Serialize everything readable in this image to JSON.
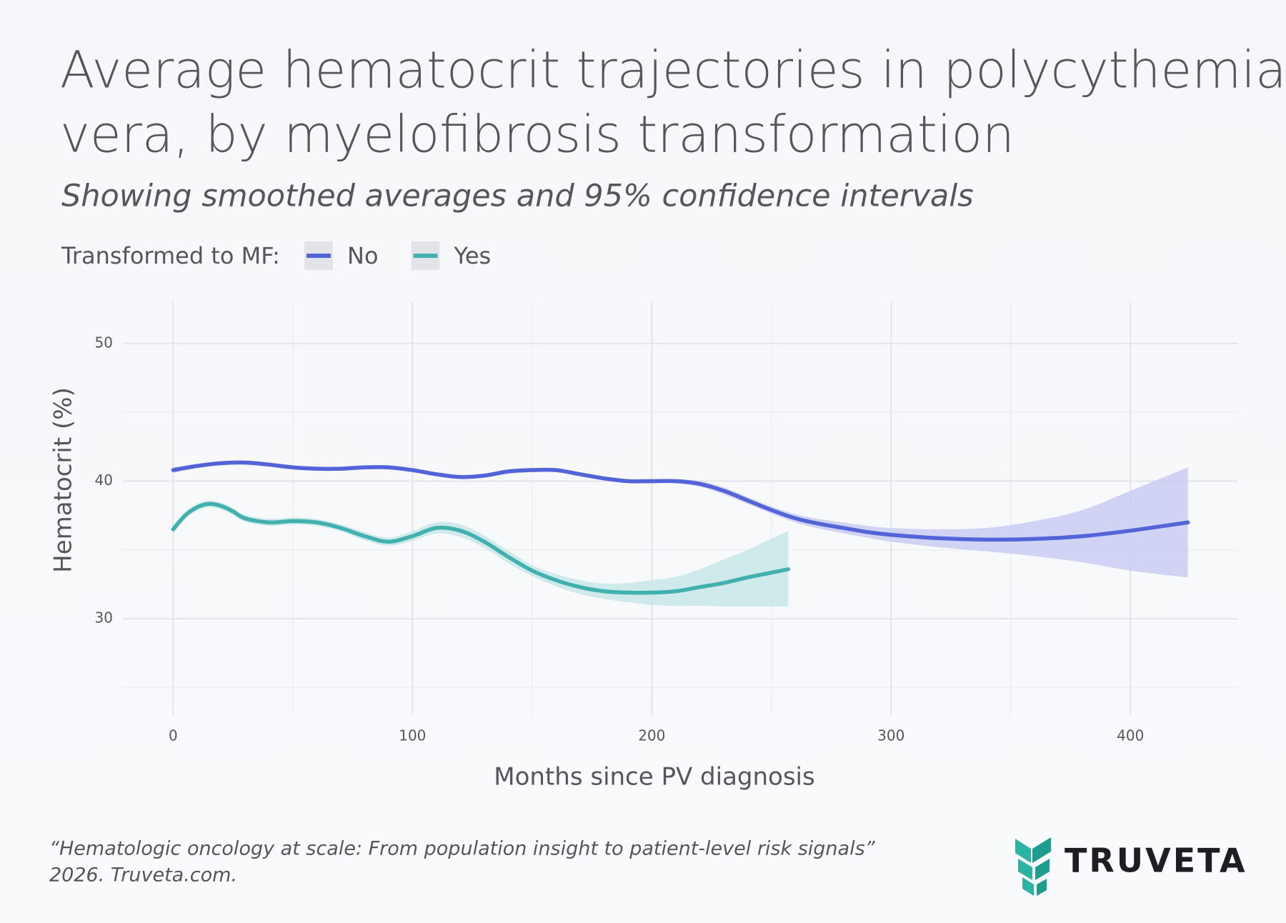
{
  "chart_data": {
    "type": "line",
    "title": [
      "Average hematocrit trajectories in polycythemia",
      "vera, by myelofibrosis transformation"
    ],
    "subtitle": "Showing smoothed averages and 95% confidence intervals",
    "legend_title": "Transformed to MF:",
    "x_label": "Months since PV diagnosis",
    "y_label": "Hematocrit (%)",
    "xlim": [
      -21,
      445
    ],
    "ylim": [
      23,
      53
    ],
    "xticks": [
      0,
      100,
      200,
      300,
      400
    ],
    "yticks": [
      30,
      40,
      50
    ],
    "x_minor_grid": [
      50,
      150,
      250,
      350
    ],
    "y_minor_grid": [
      25,
      35,
      45
    ],
    "grid": true,
    "series": [
      {
        "name": "No",
        "color": "#5264d8",
        "band_color": "#c5c9f3",
        "x": [
          0,
          10,
          20,
          30,
          40,
          50,
          60,
          70,
          80,
          90,
          100,
          110,
          120,
          130,
          140,
          150,
          160,
          170,
          180,
          190,
          200,
          210,
          220,
          230,
          240,
          250,
          260,
          270,
          280,
          290,
          300,
          320,
          340,
          360,
          380,
          400,
          424
        ],
        "values": [
          40.8,
          41.1,
          41.3,
          41.35,
          41.2,
          41.0,
          40.9,
          40.9,
          41.0,
          41.0,
          40.8,
          40.5,
          40.3,
          40.4,
          40.7,
          40.8,
          40.8,
          40.5,
          40.2,
          40.0,
          40.0,
          40.0,
          39.8,
          39.3,
          38.6,
          37.9,
          37.3,
          36.9,
          36.6,
          36.3,
          36.1,
          35.85,
          35.75,
          35.8,
          36.0,
          36.4,
          37.0
        ],
        "lower": [
          40.6,
          40.95,
          41.15,
          41.2,
          41.05,
          40.85,
          40.75,
          40.75,
          40.85,
          40.85,
          40.65,
          40.35,
          40.15,
          40.25,
          40.55,
          40.65,
          40.65,
          40.35,
          40.05,
          39.85,
          39.85,
          39.85,
          39.6,
          39.05,
          38.35,
          37.65,
          37.0,
          36.55,
          36.2,
          35.9,
          35.6,
          35.2,
          34.9,
          34.55,
          34.1,
          33.5,
          33.0
        ],
        "upper": [
          41.0,
          41.25,
          41.45,
          41.5,
          41.35,
          41.15,
          41.05,
          41.05,
          41.15,
          41.15,
          40.95,
          40.65,
          40.45,
          40.55,
          40.85,
          40.95,
          40.95,
          40.65,
          40.35,
          40.15,
          40.15,
          40.15,
          40.0,
          39.55,
          38.85,
          38.15,
          37.6,
          37.25,
          37.0,
          36.75,
          36.6,
          36.5,
          36.6,
          37.1,
          37.9,
          39.3,
          41.0
        ]
      },
      {
        "name": "Yes",
        "color": "#43b0b0",
        "band_color": "#c4e6e6",
        "x": [
          0,
          5,
          10,
          15,
          20,
          25,
          30,
          40,
          50,
          60,
          70,
          80,
          90,
          100,
          110,
          120,
          130,
          140,
          150,
          160,
          170,
          180,
          190,
          200,
          210,
          220,
          230,
          240,
          257
        ],
        "values": [
          36.5,
          37.5,
          38.1,
          38.35,
          38.2,
          37.8,
          37.3,
          37.0,
          37.1,
          37.0,
          36.6,
          36.0,
          35.6,
          36.0,
          36.6,
          36.4,
          35.6,
          34.5,
          33.5,
          32.8,
          32.3,
          32.0,
          31.9,
          31.9,
          32.0,
          32.3,
          32.6,
          33.0,
          33.6
        ],
        "lower": [
          36.2,
          37.25,
          37.85,
          38.1,
          37.95,
          37.55,
          37.05,
          36.75,
          36.85,
          36.75,
          36.35,
          35.7,
          35.3,
          35.65,
          36.2,
          35.95,
          35.15,
          34.05,
          33.1,
          32.35,
          31.8,
          31.45,
          31.2,
          31.0,
          30.95,
          30.95,
          30.9,
          30.9,
          30.9
        ],
        "upper": [
          36.8,
          37.75,
          38.35,
          38.6,
          38.45,
          38.05,
          37.55,
          37.25,
          37.35,
          37.25,
          36.85,
          36.3,
          35.9,
          36.35,
          37.0,
          36.85,
          36.05,
          34.95,
          33.9,
          33.25,
          32.8,
          32.55,
          32.6,
          32.8,
          33.05,
          33.6,
          34.3,
          35.0,
          36.4
        ]
      }
    ],
    "footnote": [
      "“Hematologic oncology at scale: From population insight to patient-level risk signals”",
      "2026. Truveta.com."
    ],
    "logo": "TRUVETA"
  }
}
